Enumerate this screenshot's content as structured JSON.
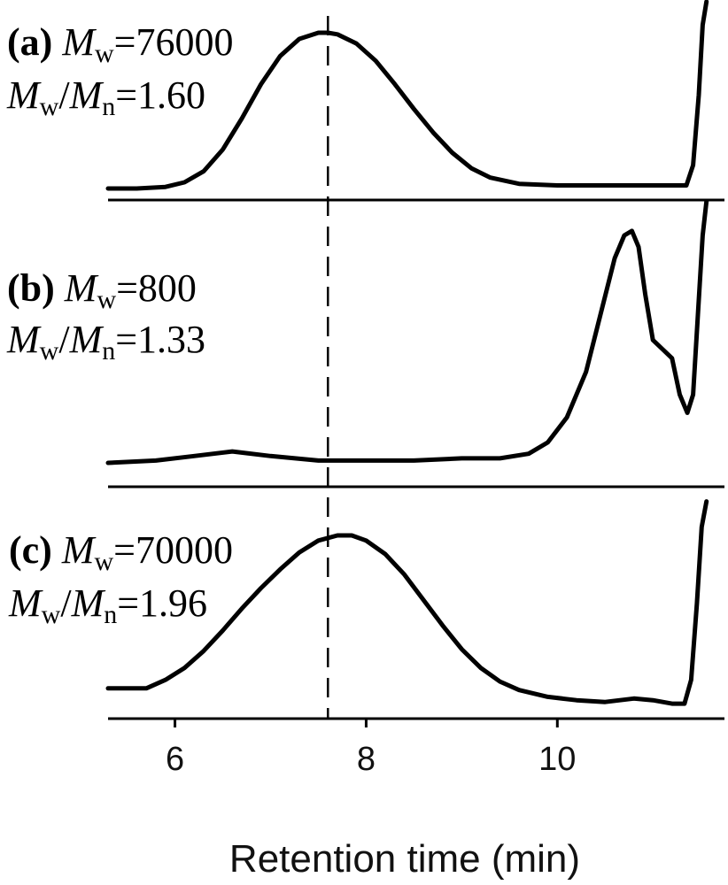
{
  "chart_data": {
    "type": "line",
    "xlabel": "Retention time (min)",
    "xlim": [
      5.3,
      11.6
    ],
    "xticks": [
      6,
      8,
      10
    ],
    "reference_line_x": 7.6,
    "reference_line_style": "dashed",
    "series": [
      {
        "panel": "(a)",
        "mw_label": "=76000",
        "pdi_label": "=1.60",
        "x": [
          5.3,
          5.6,
          5.9,
          6.1,
          6.3,
          6.5,
          6.7,
          6.9,
          7.1,
          7.3,
          7.5,
          7.6,
          7.7,
          7.9,
          8.1,
          8.3,
          8.5,
          8.7,
          8.9,
          9.1,
          9.3,
          9.6,
          10.0,
          10.4,
          10.8,
          11.0,
          11.2,
          11.35,
          11.42,
          11.48,
          11.52,
          11.56
        ],
        "y": [
          0.0,
          0.0,
          0.01,
          0.04,
          0.11,
          0.25,
          0.45,
          0.67,
          0.85,
          0.96,
          1.0,
          1.0,
          0.99,
          0.93,
          0.82,
          0.67,
          0.51,
          0.36,
          0.23,
          0.13,
          0.07,
          0.03,
          0.02,
          0.02,
          0.02,
          0.02,
          0.02,
          0.02,
          0.15,
          0.6,
          1.05,
          1.2
        ]
      },
      {
        "panel": "(b)",
        "mw_label": "=800",
        "pdi_label": "=1.33",
        "x": [
          5.3,
          5.8,
          6.2,
          6.6,
          7.0,
          7.5,
          8.0,
          8.5,
          9.0,
          9.4,
          9.7,
          9.9,
          10.1,
          10.3,
          10.45,
          10.6,
          10.7,
          10.78,
          10.85,
          10.92,
          11.0,
          11.1,
          11.2,
          11.28,
          11.36,
          11.42,
          11.47,
          11.52,
          11.56
        ],
        "y": [
          0.0,
          0.01,
          0.03,
          0.05,
          0.03,
          0.01,
          0.01,
          0.01,
          0.02,
          0.02,
          0.04,
          0.09,
          0.2,
          0.4,
          0.65,
          0.9,
          1.0,
          1.02,
          0.95,
          0.74,
          0.54,
          0.5,
          0.46,
          0.3,
          0.22,
          0.3,
          0.65,
          1.0,
          1.15
        ]
      },
      {
        "panel": "(c)",
        "mw_label": "=70000",
        "pdi_label": "=1.96",
        "x": [
          5.3,
          5.5,
          5.7,
          5.9,
          6.1,
          6.3,
          6.5,
          6.7,
          6.9,
          7.1,
          7.3,
          7.5,
          7.7,
          7.85,
          8.0,
          8.2,
          8.4,
          8.6,
          8.8,
          9.0,
          9.2,
          9.4,
          9.6,
          9.9,
          10.2,
          10.5,
          10.8,
          11.0,
          11.2,
          11.33,
          11.4,
          11.46,
          11.51,
          11.56
        ],
        "y": [
          0.1,
          0.1,
          0.1,
          0.15,
          0.22,
          0.32,
          0.44,
          0.57,
          0.69,
          0.8,
          0.9,
          0.97,
          1.0,
          1.0,
          0.97,
          0.89,
          0.77,
          0.62,
          0.47,
          0.33,
          0.22,
          0.14,
          0.09,
          0.05,
          0.03,
          0.02,
          0.04,
          0.03,
          0.01,
          0.01,
          0.15,
          0.6,
          1.05,
          1.2
        ]
      }
    ]
  }
}
